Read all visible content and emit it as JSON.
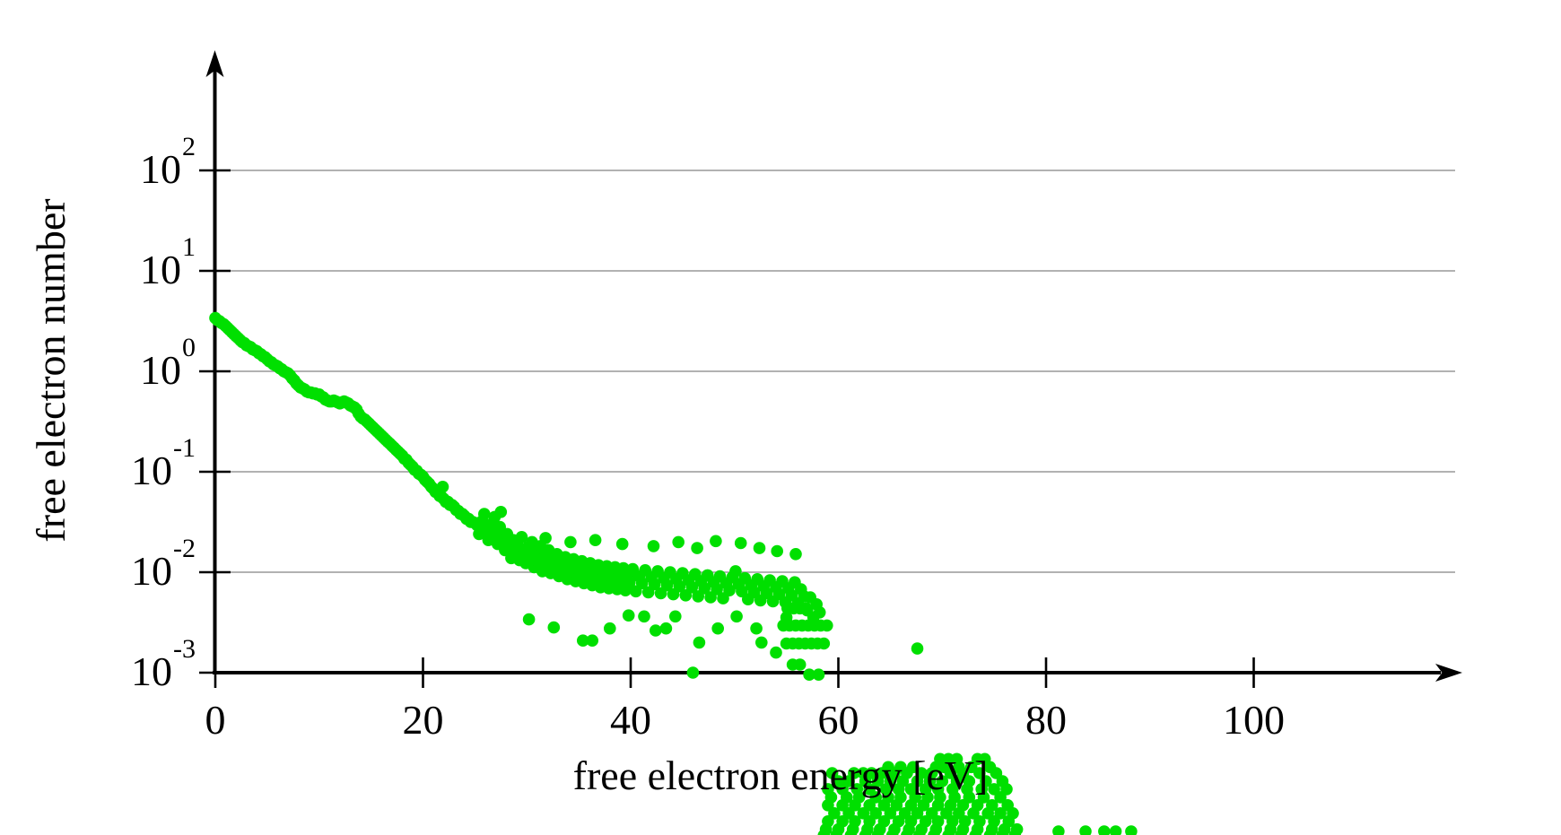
{
  "figure": {
    "background": "#ffffff",
    "axis_color": "#000000",
    "grid_color": "#999999",
    "marker_color": "#00DF00"
  },
  "chart_data": {
    "type": "scatter",
    "title": "",
    "xlabel": "free electron energy [eV]",
    "ylabel": "free electron number",
    "x_ticks": {
      "values": [
        0,
        20,
        40,
        60,
        80,
        100
      ],
      "labels": [
        "0",
        "20",
        "40",
        "60",
        "80",
        "100"
      ]
    },
    "y_ticks": {
      "exponents": [
        2,
        1,
        0,
        -1,
        -2,
        -3
      ],
      "labels": [
        "10^2",
        "10^1",
        "10^0",
        "10^-1",
        "10^-2",
        "10^-3"
      ]
    },
    "y_scale": "log10",
    "x_axis_arrow_end_ev": 120,
    "grid": "horizontal",
    "legend": "none",
    "marker": {
      "shape": "circle",
      "color": "#00DF00",
      "radius_px": 6.8
    },
    "notes": "Single green series; starts near 3.5 at 0 eV, decays with shoulder near 9-13 eV, plateau ~1e-2 from 28-58 eV; a dense cluster of points below 1e-3 (58-77 eV) spills under the axis over the x-label and is cut by the image bottom edge.",
    "points_log10": [
      [
        0,
        0.53
      ],
      [
        0.2,
        0.51
      ],
      [
        0.4,
        0.5
      ],
      [
        0.6,
        0.48
      ],
      [
        0.8,
        0.47
      ],
      [
        1,
        0.45
      ],
      [
        1.2,
        0.43
      ],
      [
        1.4,
        0.41
      ],
      [
        1.6,
        0.39
      ],
      [
        1.8,
        0.37
      ],
      [
        2,
        0.35
      ],
      [
        2.2,
        0.33
      ],
      [
        2.4,
        0.31
      ],
      [
        2.6,
        0.29
      ],
      [
        2.8,
        0.28
      ],
      [
        3,
        0.26
      ],
      [
        3.2,
        0.25
      ],
      [
        3.4,
        0.24
      ],
      [
        3.6,
        0.22
      ],
      [
        3.8,
        0.21
      ],
      [
        4,
        0.2
      ],
      [
        4.2,
        0.18
      ],
      [
        4.4,
        0.17
      ],
      [
        4.6,
        0.15
      ],
      [
        4.8,
        0.14
      ],
      [
        5,
        0.12
      ],
      [
        5.2,
        0.1
      ],
      [
        5.4,
        0.09
      ],
      [
        5.6,
        0.07
      ],
      [
        5.8,
        0.06
      ],
      [
        6,
        0.05
      ],
      [
        6.2,
        0.03
      ],
      [
        6.4,
        0.02
      ],
      [
        6.6,
        0.0
      ],
      [
        6.8,
        -0.01
      ],
      [
        7,
        -0.02
      ],
      [
        7.2,
        -0.04
      ],
      [
        7.4,
        -0.07
      ],
      [
        7.6,
        -0.09
      ],
      [
        7.8,
        -0.12
      ],
      [
        8,
        -0.14
      ],
      [
        8.2,
        -0.16
      ],
      [
        8.4,
        -0.17
      ],
      [
        8.6,
        -0.18
      ],
      [
        8.8,
        -0.2
      ],
      [
        9,
        -0.21
      ],
      [
        9.2,
        -0.21
      ],
      [
        9.4,
        -0.22
      ],
      [
        9.6,
        -0.22
      ],
      [
        9.8,
        -0.23
      ],
      [
        10,
        -0.23
      ],
      [
        10.2,
        -0.25
      ],
      [
        10.4,
        -0.26
      ],
      [
        10.6,
        -0.28
      ],
      [
        10.8,
        -0.29
      ],
      [
        11,
        -0.3
      ],
      [
        11.2,
        -0.3
      ],
      [
        11.4,
        -0.29
      ],
      [
        11.6,
        -0.3
      ],
      [
        11.8,
        -0.31
      ],
      [
        12,
        -0.32
      ],
      [
        12.2,
        -0.31
      ],
      [
        12.4,
        -0.3
      ],
      [
        12.6,
        -0.31
      ],
      [
        12.8,
        -0.32
      ],
      [
        13,
        -0.34
      ],
      [
        13.2,
        -0.35
      ],
      [
        13.4,
        -0.36
      ],
      [
        13.6,
        -0.38
      ],
      [
        13.8,
        -0.42
      ],
      [
        14,
        -0.45
      ],
      [
        14.2,
        -0.47
      ],
      [
        14.4,
        -0.48
      ],
      [
        14.6,
        -0.5
      ],
      [
        14.8,
        -0.52
      ],
      [
        15,
        -0.54
      ],
      [
        15.2,
        -0.56
      ],
      [
        15.4,
        -0.58
      ],
      [
        15.6,
        -0.6
      ],
      [
        15.8,
        -0.62
      ],
      [
        16,
        -0.64
      ],
      [
        16.2,
        -0.66
      ],
      [
        16.4,
        -0.68
      ],
      [
        16.6,
        -0.7
      ],
      [
        16.8,
        -0.72
      ],
      [
        17,
        -0.74
      ],
      [
        17.2,
        -0.76
      ],
      [
        17.4,
        -0.78
      ],
      [
        17.6,
        -0.8
      ],
      [
        17.8,
        -0.82
      ],
      [
        18,
        -0.84
      ],
      [
        18.2,
        -0.87
      ],
      [
        18.4,
        -0.88
      ],
      [
        18.6,
        -0.91
      ],
      [
        18.8,
        -0.93
      ],
      [
        19,
        -0.95
      ],
      [
        19.2,
        -0.98
      ],
      [
        19.4,
        -0.99
      ],
      [
        19.6,
        -1.02
      ],
      [
        19.8,
        -1.03
      ],
      [
        20,
        -1.05
      ],
      [
        20.2,
        -1.08
      ],
      [
        20.4,
        -1.1
      ],
      [
        20.6,
        -1.12
      ],
      [
        20.8,
        -1.15
      ],
      [
        21,
        -1.17
      ],
      [
        21.2,
        -1.2
      ],
      [
        21.4,
        -1.21
      ],
      [
        21.6,
        -1.24
      ],
      [
        21.8,
        -1.25
      ],
      [
        21.9,
        -1.15
      ],
      [
        22,
        -1.27
      ],
      [
        22.2,
        -1.3
      ],
      [
        22.4,
        -1.3
      ],
      [
        22.6,
        -1.33
      ],
      [
        22.8,
        -1.33
      ],
      [
        23,
        -1.35
      ],
      [
        23.2,
        -1.38
      ],
      [
        23.4,
        -1.39
      ],
      [
        23.6,
        -1.42
      ],
      [
        23.8,
        -1.42
      ],
      [
        24,
        -1.44
      ],
      [
        24.2,
        -1.47
      ],
      [
        24.4,
        -1.47
      ],
      [
        24.6,
        -1.5
      ],
      [
        24.8,
        -1.5
      ],
      [
        25,
        -1.51
      ],
      [
        25.2,
        -1.53
      ],
      [
        25.4,
        -1.62
      ],
      [
        25.7,
        -1.49
      ],
      [
        25.9,
        -1.6
      ],
      [
        26.1,
        -1.55
      ],
      [
        26.3,
        -1.68
      ],
      [
        26.6,
        -1.52
      ],
      [
        26.8,
        -1.64
      ],
      [
        27.0,
        -1.59
      ],
      [
        27.2,
        -1.72
      ],
      [
        27.4,
        -1.55
      ],
      [
        27.5,
        -1.4
      ],
      [
        27.7,
        -1.66
      ],
      [
        27.9,
        -1.78
      ],
      [
        28.1,
        -1.62
      ],
      [
        28.3,
        -1.74
      ],
      [
        28.5,
        -1.86
      ],
      [
        28.7,
        -1.68
      ],
      [
        28.9,
        -1.8
      ],
      [
        29.1,
        -1.73
      ],
      [
        29.3,
        -1.88
      ],
      [
        29.5,
        -1.65
      ],
      [
        29.7,
        -1.79
      ],
      [
        29.9,
        -1.91
      ],
      [
        30.1,
        -1.75
      ],
      [
        30.3,
        -1.86
      ],
      [
        30.5,
        -1.7
      ],
      [
        30.7,
        -1.95
      ],
      [
        30.9,
        -1.81
      ],
      [
        31.1,
        -1.9
      ],
      [
        31.3,
        -1.74
      ],
      [
        31.5,
        -1.99
      ],
      [
        31.7,
        -1.85
      ],
      [
        31.9,
        -1.93
      ],
      [
        32.1,
        -1.78
      ],
      [
        32.3,
        -2.01
      ],
      [
        32.5,
        -1.88
      ],
      [
        32.7,
        -1.96
      ],
      [
        32.9,
        -1.82
      ],
      [
        33.1,
        -2.04
      ],
      [
        33.3,
        -1.9
      ],
      [
        33.5,
        -1.98
      ],
      [
        33.7,
        -1.85
      ],
      [
        33.9,
        -2.07
      ],
      [
        34.1,
        -1.93
      ],
      [
        34.3,
        -2.0
      ],
      [
        34.5,
        -1.87
      ],
      [
        34.7,
        -2.09
      ],
      [
        34.9,
        -1.95
      ],
      [
        35.1,
        -2.02
      ],
      [
        35.3,
        -1.89
      ],
      [
        35.5,
        -2.11
      ],
      [
        35.7,
        -1.97
      ],
      [
        35.9,
        -2.04
      ],
      [
        36.1,
        -1.91
      ],
      [
        36.3,
        -2.13
      ],
      [
        36.5,
        -1.98
      ],
      [
        36.7,
        -2.05
      ],
      [
        36.9,
        -1.93
      ],
      [
        37.1,
        -2.15
      ],
      [
        37.3,
        -2.0
      ],
      [
        37.5,
        -2.07
      ],
      [
        37.7,
        -1.94
      ],
      [
        37.9,
        -2.16
      ],
      [
        38.1,
        -2.01
      ],
      [
        38.3,
        -2.08
      ],
      [
        38.5,
        -1.95
      ],
      [
        38.7,
        -2.17
      ],
      [
        38.9,
        -2.02
      ],
      [
        39.1,
        -2.09
      ],
      [
        39.3,
        -1.96
      ],
      [
        39.5,
        -2.18
      ],
      [
        39.7,
        -2.03
      ],
      [
        39.9,
        -2.1
      ],
      [
        40.2,
        -1.97
      ],
      [
        40.5,
        -2.19
      ],
      [
        40.8,
        -2.04
      ],
      [
        41.1,
        -2.11
      ],
      [
        41.4,
        -1.98
      ],
      [
        41.7,
        -2.2
      ],
      [
        42.0,
        -2.05
      ],
      [
        42.3,
        -2.12
      ],
      [
        42.6,
        -1.99
      ],
      [
        42.9,
        -2.21
      ],
      [
        43.2,
        -2.06
      ],
      [
        43.5,
        -2.13
      ],
      [
        43.8,
        -2.0
      ],
      [
        44.1,
        -2.22
      ],
      [
        44.4,
        -2.07
      ],
      [
        44.7,
        -2.14
      ],
      [
        45.0,
        -2.01
      ],
      [
        45.3,
        -2.23
      ],
      [
        45.6,
        -2.08
      ],
      [
        45.9,
        -2.15
      ],
      [
        46.2,
        -2.02
      ],
      [
        46.5,
        -2.24
      ],
      [
        46.8,
        -2.09
      ],
      [
        47.1,
        -2.16
      ],
      [
        47.4,
        -2.03
      ],
      [
        47.7,
        -2.25
      ],
      [
        48.0,
        -2.1
      ],
      [
        48.3,
        -2.17
      ],
      [
        48.6,
        -2.04
      ],
      [
        48.9,
        -2.26
      ],
      [
        49.2,
        -2.11
      ],
      [
        49.5,
        -2.18
      ],
      [
        49.8,
        -2.05
      ],
      [
        50.1,
        -1.99
      ],
      [
        50.4,
        -2.12
      ],
      [
        50.7,
        -2.19
      ],
      [
        51.0,
        -2.06
      ],
      [
        51.3,
        -2.27
      ],
      [
        51.6,
        -2.13
      ],
      [
        51.9,
        -2.2
      ],
      [
        52.2,
        -2.07
      ],
      [
        52.5,
        -2.28
      ],
      [
        52.8,
        -2.14
      ],
      [
        53.1,
        -2.21
      ],
      [
        53.4,
        -2.08
      ],
      [
        53.7,
        -2.29
      ],
      [
        54.0,
        -2.15
      ],
      [
        54.3,
        -2.22
      ],
      [
        54.6,
        -2.09
      ],
      [
        54.9,
        -2.3
      ],
      [
        55.2,
        -2.16
      ],
      [
        55.5,
        -2.23
      ],
      [
        55.8,
        -2.1
      ],
      [
        56.1,
        -2.31
      ],
      [
        56.4,
        -2.17
      ],
      [
        56.7,
        -2.24
      ],
      [
        57.0,
        -2.38
      ],
      [
        57.3,
        -2.25
      ],
      [
        57.6,
        -2.45
      ],
      [
        57.9,
        -2.32
      ],
      [
        58.2,
        -2.4
      ],
      [
        25.9,
        -1.42
      ],
      [
        26.9,
        -1.45
      ],
      [
        31.8,
        -1.66
      ],
      [
        34.2,
        -1.7
      ],
      [
        36.6,
        -1.68
      ],
      [
        39.2,
        -1.72
      ],
      [
        42.2,
        -1.74
      ],
      [
        44.6,
        -1.7
      ],
      [
        46.4,
        -1.76
      ],
      [
        48.2,
        -1.69
      ],
      [
        50.6,
        -1.71
      ],
      [
        52.4,
        -1.76
      ],
      [
        54.1,
        -1.79
      ],
      [
        55.9,
        -1.82
      ],
      [
        30.2,
        -2.47
      ],
      [
        32.6,
        -2.55
      ],
      [
        35.4,
        -2.68
      ],
      [
        36.3,
        -2.68
      ],
      [
        38.0,
        -2.56
      ],
      [
        39.8,
        -2.43
      ],
      [
        41.3,
        -2.44
      ],
      [
        42.4,
        -2.58
      ],
      [
        43.4,
        -2.56
      ],
      [
        44.3,
        -2.44
      ],
      [
        46.6,
        -2.7
      ],
      [
        48.4,
        -2.56
      ],
      [
        50.2,
        -2.44
      ],
      [
        52.1,
        -2.56
      ],
      [
        52.6,
        -2.7
      ],
      [
        55.0,
        -2.45
      ],
      [
        54.0,
        -2.8
      ],
      [
        55.6,
        -2.92
      ],
      [
        56.3,
        -2.92
      ],
      [
        55.1,
        -2.36
      ],
      [
        55.7,
        -2.36
      ],
      [
        56.3,
        -2.36
      ],
      [
        56.9,
        -2.36
      ],
      [
        54.7,
        -2.53
      ],
      [
        55.3,
        -2.53
      ],
      [
        55.9,
        -2.53
      ],
      [
        56.5,
        -2.53
      ],
      [
        57.1,
        -2.53
      ],
      [
        57.7,
        -2.53
      ],
      [
        58.3,
        -2.53
      ],
      [
        58.9,
        -2.53
      ],
      [
        55.0,
        -2.71
      ],
      [
        55.6,
        -2.71
      ],
      [
        56.2,
        -2.71
      ],
      [
        56.8,
        -2.71
      ],
      [
        57.4,
        -2.71
      ],
      [
        58.0,
        -2.71
      ],
      [
        58.6,
        -2.71
      ],
      [
        46.0,
        -3.0
      ],
      [
        57.2,
        -3.02
      ],
      [
        58.1,
        -3.02
      ],
      [
        67.6,
        -2.76
      ]
    ],
    "below_axis_rows_log10": [
      {
        "logv": -3.86,
        "energies": [
          69.8,
          70.6,
          71.4,
          73.4,
          74.1
        ]
      },
      {
        "logv": -3.94,
        "energies": [
          64.8,
          66.0,
          67.2,
          69.4,
          70.2,
          71.6,
          72.8,
          74.6
        ]
      },
      {
        "logv": -4.0,
        "energies": [
          59.4,
          61.5,
          62.4,
          63.2,
          64.2,
          65.4,
          66.6,
          68.0,
          69.0,
          70.8,
          72.0,
          73.6,
          75.2
        ]
      },
      {
        "logv": -4.08,
        "energies": [
          60.0,
          61.0,
          62.6,
          63.8,
          65.0,
          66.2,
          67.6,
          68.8,
          70.0,
          71.4,
          72.6,
          74.2,
          75.8
        ]
      },
      {
        "logv": -4.16,
        "energies": [
          59.0,
          60.4,
          61.8,
          63.0,
          64.6,
          65.8,
          67.0,
          68.4,
          69.6,
          71.0,
          72.4,
          73.8,
          75.0,
          76.2
        ]
      },
      {
        "logv": -4.24,
        "energies": [
          59.3,
          60.8,
          62.0,
          63.6,
          64.8,
          66.0,
          67.4,
          68.6,
          69.8,
          71.2,
          72.6,
          74.0,
          75.6
        ]
      },
      {
        "logv": -4.32,
        "energies": [
          59.0,
          60.4,
          61.6,
          63.0,
          64.4,
          65.6,
          67.0,
          68.2,
          69.6,
          70.8,
          72.0,
          73.4,
          74.8,
          76.3
        ]
      },
      {
        "logv": -4.4,
        "energies": [
          59.6,
          61.0,
          62.4,
          63.6,
          65.0,
          66.4,
          67.6,
          69.0,
          70.4,
          71.6,
          73.0,
          74.4,
          75.6,
          76.8
        ]
      },
      {
        "logv": -4.48,
        "energies": [
          59.0,
          60.4,
          61.6,
          63.0,
          64.4,
          65.8,
          67.0,
          68.4,
          69.6,
          71.0,
          72.2,
          73.6,
          75.0,
          76.4
        ]
      },
      {
        "logv": -4.56,
        "energies": [
          58.8,
          60.0,
          61.4,
          62.8,
          64.0,
          65.4,
          66.8,
          68.0,
          69.4,
          70.8,
          72.0,
          73.4,
          74.8,
          76.0,
          77.2
        ]
      },
      {
        "logv": -4.62,
        "energies": [
          58.6,
          59.8,
          61.2,
          62.6,
          63.8,
          65.2,
          66.6,
          67.8,
          69.2,
          70.6,
          71.8,
          73.2,
          74.6,
          75.8,
          77.0
        ]
      },
      {
        "logv": -4.58,
        "energies": [
          81.2,
          83.8,
          85.6,
          86.7,
          88.2
        ]
      }
    ]
  }
}
